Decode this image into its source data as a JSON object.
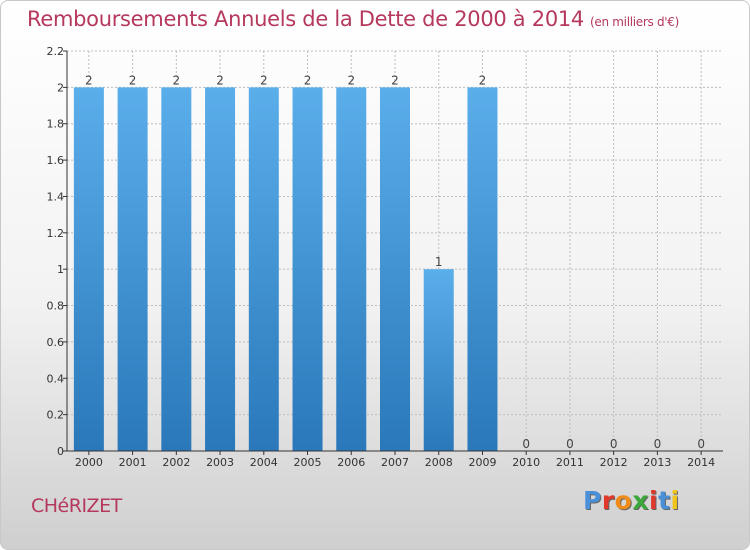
{
  "header": {
    "title": "Remboursements Annuels de la Dette de 2000 à 2014",
    "unit": "(en milliers d'€)"
  },
  "footer": {
    "commune": "CHéRIZET",
    "logo_letters": [
      "P",
      "r",
      "o",
      "x",
      "i",
      "t",
      "i"
    ],
    "logo_colors": [
      "#4a90d9",
      "#e0392b",
      "#f08c1a",
      "#3aa83a",
      "#e0392b",
      "#4a90d9",
      "#f0c419"
    ]
  },
  "colors": {
    "bar_top": "#5aaeea",
    "bar_bottom": "#2a78ba",
    "grid": "#bdbdbd",
    "axis": "#333333",
    "text": "#333333"
  },
  "chart_data": {
    "type": "bar",
    "categories": [
      "2000",
      "2001",
      "2002",
      "2003",
      "2004",
      "2005",
      "2006",
      "2007",
      "2008",
      "2009",
      "2010",
      "2011",
      "2012",
      "2013",
      "2014"
    ],
    "values": [
      2,
      2,
      2,
      2,
      2,
      2,
      2,
      2,
      1,
      2,
      0,
      0,
      0,
      0,
      0
    ],
    "data_labels": [
      "2",
      "2",
      "2",
      "2",
      "2",
      "2",
      "2",
      "2",
      "1",
      "2",
      "0",
      "0",
      "0",
      "0",
      "0"
    ],
    "y_ticks": [
      0,
      0.2,
      0.4,
      0.6,
      0.8,
      1,
      1.2,
      1.4,
      1.6,
      1.8,
      2,
      2.2
    ],
    "y_tick_labels": [
      "0",
      "0.2",
      "0.4",
      "0.6",
      "0.8",
      "1",
      "1.2",
      "1.4",
      "1.6",
      "1.8",
      "2",
      "2.2"
    ],
    "ylim": [
      0,
      2.2
    ],
    "grid": true,
    "legend": "none"
  }
}
